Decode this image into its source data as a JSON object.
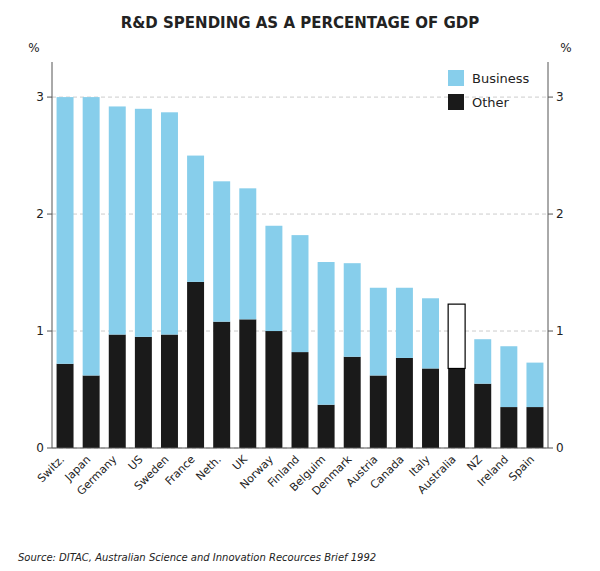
{
  "chart_data": {
    "type": "bar",
    "title": "R&D SPENDING AS A PERCENTAGE OF GDP",
    "categories": [
      "Switz.",
      "Japan",
      "Germany",
      "US",
      "Sweden",
      "France",
      "Neth.",
      "UK",
      "Norway",
      "Finland",
      "Belguim",
      "Denmark",
      "Austria",
      "Canada",
      "Italy",
      "Australia",
      "NZ",
      "Ireland",
      "Spain"
    ],
    "series": [
      {
        "name": "Other",
        "color": "#1a1a1a",
        "values": [
          0.72,
          0.62,
          0.97,
          0.95,
          0.97,
          1.42,
          1.08,
          1.1,
          1.0,
          0.82,
          0.37,
          0.78,
          0.62,
          0.77,
          0.68,
          0.68,
          0.55,
          0.35,
          0.35
        ]
      },
      {
        "name": "Business",
        "color": "#87CEEB",
        "colors": [
          "#87CEEB",
          "#87CEEB",
          "#87CEEB",
          "#87CEEB",
          "#87CEEB",
          "#87CEEB",
          "#87CEEB",
          "#87CEEB",
          "#87CEEB",
          "#87CEEB",
          "#87CEEB",
          "#87CEEB",
          "#87CEEB",
          "#87CEEB",
          "#87CEEB",
          "#ffffff",
          "#87CEEB",
          "#87CEEB",
          "#87CEEB"
        ],
        "values": [
          2.28,
          2.38,
          1.95,
          1.95,
          1.9,
          1.08,
          1.2,
          1.12,
          0.9,
          1.0,
          1.22,
          0.8,
          0.75,
          0.6,
          0.6,
          0.55,
          0.38,
          0.52,
          0.38
        ]
      }
    ],
    "stacked": true,
    "ylabel": "%",
    "y2label": "%",
    "ylim": [
      0,
      3.3
    ],
    "yticks": [
      0,
      1,
      2,
      3
    ],
    "y2lim": [
      0,
      3.3
    ],
    "y2ticks": [
      0,
      1,
      2,
      3
    ],
    "grid": true,
    "legend": "upper right",
    "source": "Source: DITAC, Australian Science and Innovation Recources Brief 1992"
  }
}
